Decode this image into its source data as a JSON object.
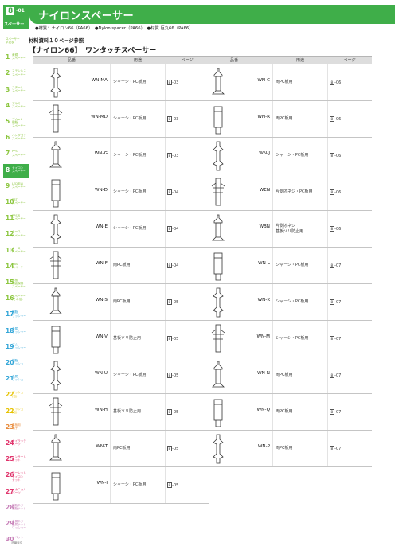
{
  "header": {
    "chapter_no": "8",
    "page_no": "-01",
    "chapter_label": "スペーサー",
    "title": "ナイロンスペーサー",
    "material_line": "●材質：ナイロン66（PA66）　●Nylon spacer（PA66）　●材質 巨丸66（PA66）"
  },
  "note": "材料資料１０ページ参照",
  "section_title": "【ナイロン66】　ワンタッチスペーサー",
  "table_headers": {
    "code": "品番",
    "use": "用途",
    "page": "ページ"
  },
  "left_rows": [
    {
      "code": "WN-MA",
      "use": "シャーシ・PC板用",
      "page_ch": "8",
      "page_no": "-03"
    },
    {
      "code": "WN-MD",
      "use": "シャーシ・PC板用",
      "page_ch": "8",
      "page_no": "-03"
    },
    {
      "code": "WN-G",
      "use": "シャーシ・PC板用",
      "page_ch": "8",
      "page_no": "-03"
    },
    {
      "code": "WN-D",
      "use": "シャーシ・PC板用",
      "page_ch": "8",
      "page_no": "-04"
    },
    {
      "code": "WN-E",
      "use": "シャーシ・PC板用",
      "page_ch": "8",
      "page_no": "-04"
    },
    {
      "code": "WN-F",
      "use": "両PC板用",
      "page_ch": "8",
      "page_no": "-04"
    },
    {
      "code": "WN-S",
      "use": "両PC板用",
      "page_ch": "8",
      "page_no": "-05"
    },
    {
      "code": "WN-V",
      "use": "基板ソリ防止用",
      "page_ch": "8",
      "page_no": "-05"
    },
    {
      "code": "WN-U",
      "use": "シャーシ・PC板用",
      "page_ch": "8",
      "page_no": "-05"
    },
    {
      "code": "WN-H",
      "use": "基板ソリ防止用",
      "page_ch": "8",
      "page_no": "-05"
    },
    {
      "code": "WN-T",
      "use": "両PC板用",
      "page_ch": "8",
      "page_no": "-05"
    },
    {
      "code": "WN-I",
      "use": "シャーシ・PC板用",
      "page_ch": "8",
      "page_no": "-05"
    }
  ],
  "right_rows": [
    {
      "code": "WN-C",
      "use": "両PC板用",
      "page_ch": "8",
      "page_no": "-06"
    },
    {
      "code": "WN-R",
      "use": "両PC板用",
      "page_ch": "8",
      "page_no": "-06"
    },
    {
      "code": "WN-J",
      "use": "シャーシ・PC板用",
      "page_ch": "8",
      "page_no": "-06"
    },
    {
      "code": "WEN",
      "use": "片側オネジ・PC板用",
      "page_ch": "8",
      "page_no": "-06"
    },
    {
      "code": "WBN",
      "use": "片側オネジ\n基板ソリ防止用",
      "page_ch": "8",
      "page_no": "-06"
    },
    {
      "code": "WN-L",
      "use": "シャーシ・PC板用",
      "page_ch": "8",
      "page_no": "-07"
    },
    {
      "code": "WN-K",
      "use": "シャーシ・PC板用",
      "page_ch": "8",
      "page_no": "-07"
    },
    {
      "code": "WN-M",
      "use": "シャーシ・PC板用",
      "page_ch": "8",
      "page_no": "-07"
    },
    {
      "code": "WN-N",
      "use": "両PC板用",
      "page_ch": "8",
      "page_no": "-07"
    },
    {
      "code": "WN-Q",
      "use": "両PC板用",
      "page_ch": "8",
      "page_no": "-07"
    },
    {
      "code": "WN-P",
      "use": "両PC板用",
      "page_ch": "8",
      "page_no": "-07"
    }
  ],
  "sidebar": [
    {
      "num": "",
      "text": "スペーサー\n早見表",
      "color": "#8cc63f"
    },
    {
      "num": "1",
      "text": "黄銅\nスペーサー",
      "color": "#8cc63f"
    },
    {
      "num": "2",
      "text": "ステンレス\nスペーサー",
      "color": "#8cc63f"
    },
    {
      "num": "3",
      "text": "スチール\nスペーサー",
      "color": "#8cc63f"
    },
    {
      "num": "4",
      "text": "アルミ\nスペーサー",
      "color": "#8cc63f"
    },
    {
      "num": "5",
      "text": "ゴムorb\n樹脂\nスペーサー",
      "color": "#8cc63f"
    },
    {
      "num": "6",
      "text": "ハンダゴテ\nスペーサー",
      "color": "#8cc63f"
    },
    {
      "num": "7",
      "text": "PPS\nスペーサー",
      "color": "#8cc63f"
    },
    {
      "num": "8",
      "text": "ナイロン\nスペーサー",
      "color": "#3fae49"
    },
    {
      "num": "9",
      "text": "LED用の\nスペーサー",
      "color": "#8cc63f"
    },
    {
      "num": "10",
      "text": "PBT\nスペーサー",
      "color": "#8cc63f"
    },
    {
      "num": "11",
      "text": "PPS系\nスペーサー",
      "color": "#8cc63f"
    },
    {
      "num": "12",
      "text": "ケース\nスペーサー",
      "color": "#8cc63f"
    },
    {
      "num": "13",
      "text": "ケース\nスペーサー",
      "color": "#8cc63f"
    },
    {
      "num": "14",
      "text": "ABS\nスペーサー",
      "color": "#8cc63f"
    },
    {
      "num": "15",
      "text": "基板\n端面保持\nスペーサー",
      "color": "#8cc63f"
    },
    {
      "num": "16",
      "text": "スペーサー\n(その他)",
      "color": "#8cc63f"
    },
    {
      "num": "17",
      "text": "樹脂\nワッシャー",
      "color": "#33a6d8"
    },
    {
      "num": "18",
      "text": "金属\nワッシャー",
      "color": "#33a6d8"
    },
    {
      "num": "19",
      "text": "ゴム\nワッシャー",
      "color": "#33a6d8"
    },
    {
      "num": "20",
      "text": "樹脂\nブッシュ",
      "color": "#33a6d8"
    },
    {
      "num": "21",
      "text": "金属\nブッシュ",
      "color": "#33a6d8"
    },
    {
      "num": "22",
      "text": "ブッシュ\n(他)",
      "color": "#e6c200"
    },
    {
      "num": "22",
      "text": "ブッシュ\n(他)",
      "color": "#e6c200"
    },
    {
      "num": "23",
      "text": "基板用\n端子",
      "color": "#e88a3a"
    },
    {
      "num": "24",
      "text": "ナイラッチ\nパーツ",
      "color": "#e0346c"
    },
    {
      "num": "25",
      "text": "インサート\nナット",
      "color": "#e0346c"
    },
    {
      "num": "26",
      "text": "ローレット\nナイロン\nナット",
      "color": "#e0346c"
    },
    {
      "num": "27",
      "text": "メカニカル\nパーツ",
      "color": "#e0346c"
    },
    {
      "num": "28",
      "text": "樹脂ネジ\n樹脂ナット",
      "color": "#c77fb8"
    },
    {
      "num": "29",
      "text": "金属ネジ\n金属ナット\nワッシャー",
      "color": "#c77fb8"
    },
    {
      "num": "30",
      "text": "リベット",
      "color": "#c77fb8"
    }
  ],
  "footer": "品番索引"
}
